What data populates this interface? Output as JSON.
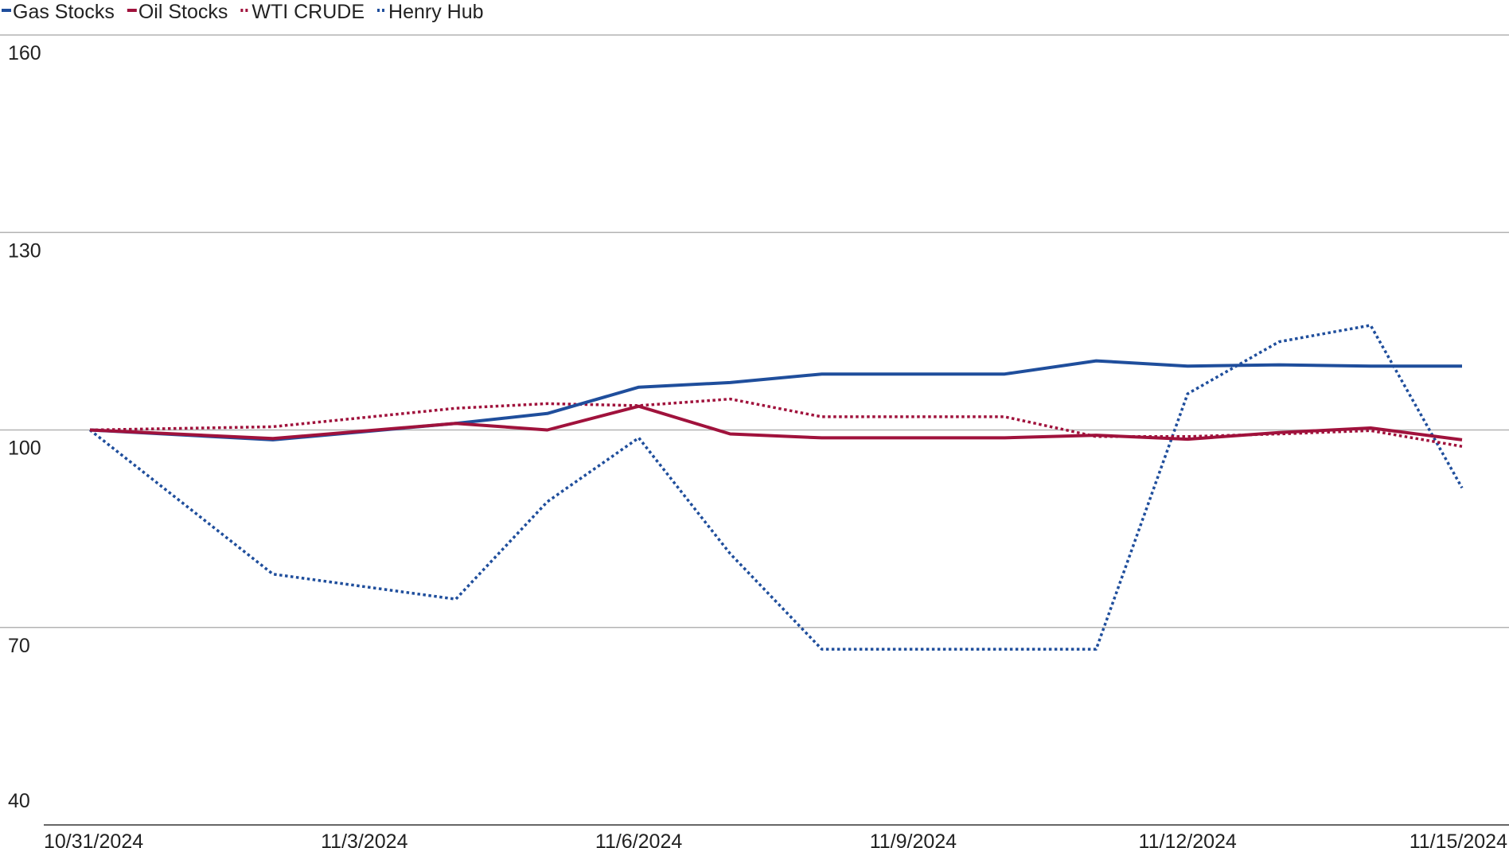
{
  "chart_data": {
    "type": "line",
    "title": "",
    "xlabel": "",
    "ylabel": "",
    "ylim": [
      40,
      160
    ],
    "yticks": [
      40,
      70,
      100,
      130,
      160
    ],
    "grid": true,
    "legend_position": "top-left",
    "x": [
      "10/31/2024",
      "11/1/2024",
      "11/2/2024",
      "11/3/2024",
      "11/4/2024",
      "11/5/2024",
      "11/6/2024",
      "11/7/2024",
      "11/8/2024",
      "11/9/2024",
      "11/10/2024",
      "11/11/2024",
      "11/12/2024",
      "11/13/2024",
      "11/14/2024",
      "11/15/2024"
    ],
    "xtick_labels": [
      "10/31/2024",
      "11/3/2024",
      "11/6/2024",
      "11/9/2024",
      "11/12/2024",
      "11/15/2024"
    ],
    "series": [
      {
        "name": "Gas Stocks",
        "color": "#1f4e9c",
        "style": "solid",
        "values": [
          100,
          null,
          98.5,
          null,
          101,
          102.5,
          106.5,
          107.2,
          108.5,
          null,
          108.5,
          110.5,
          109.7,
          109.9,
          109.7,
          109.7
        ]
      },
      {
        "name": "Oil Stocks",
        "color": "#a0123c",
        "style": "solid",
        "values": [
          100,
          null,
          98.7,
          null,
          101,
          100,
          103.6,
          99.4,
          98.8,
          null,
          98.8,
          99.2,
          98.6,
          99.6,
          100.3,
          98.5
        ]
      },
      {
        "name": "WTI CRUDE",
        "color": "#a0123c",
        "style": "dotted",
        "values": [
          100,
          null,
          100.5,
          null,
          103.3,
          104,
          103.7,
          104.7,
          102,
          null,
          102,
          99,
          99,
          99.4,
          99.9,
          97.5
        ]
      },
      {
        "name": "Henry Hub",
        "color": "#1f4e9c",
        "style": "dotted",
        "values": [
          100,
          null,
          78.1,
          null,
          74.3,
          89.1,
          98.8,
          81.2,
          66.7,
          null,
          66.7,
          66.7,
          105.5,
          113.4,
          115.9,
          91.2
        ]
      }
    ]
  }
}
